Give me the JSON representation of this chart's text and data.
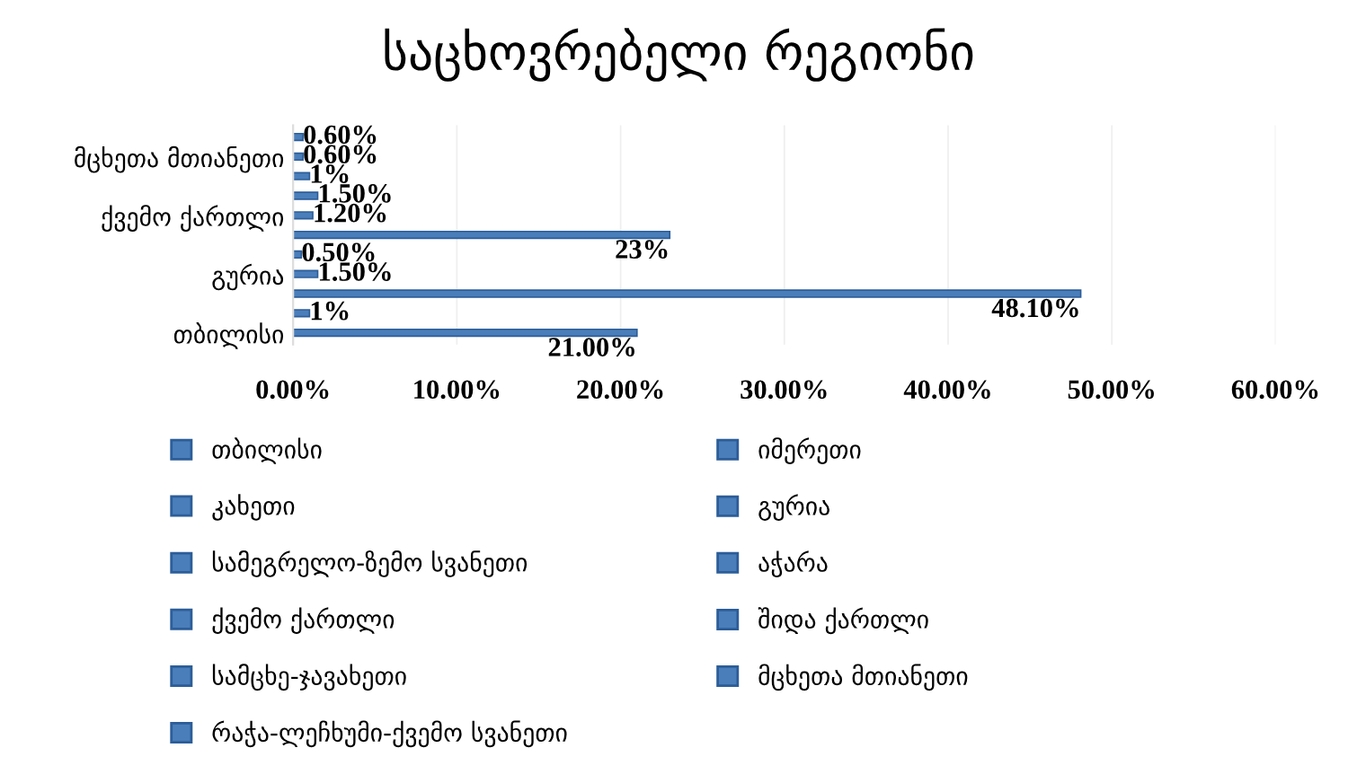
{
  "chart_data": {
    "type": "bar",
    "orientation": "horizontal",
    "title": "საცხოვრებელი რეგიონი",
    "categories": [
      null,
      "მცხეთა მთიანეთი",
      null,
      null,
      "ქვემო ქართლი",
      null,
      null,
      "გურია",
      null,
      null,
      "თბილისი"
    ],
    "series": [
      {
        "name": "თბილისი",
        "color": "#4a7ebb",
        "values": [
          null,
          null,
          null,
          null,
          null,
          null,
          null,
          null,
          null,
          null,
          21
        ],
        "value_labels": [
          null,
          null,
          null,
          null,
          null,
          null,
          null,
          null,
          null,
          null,
          "21.00%"
        ]
      },
      {
        "name": "იმერეთი",
        "color": "#4a7ebb",
        "values": [
          null,
          null,
          null,
          null,
          null,
          null,
          null,
          null,
          null,
          1,
          null
        ],
        "value_labels": [
          null,
          null,
          null,
          null,
          null,
          null,
          null,
          null,
          null,
          "1%",
          null
        ]
      },
      {
        "name": "კახეთი",
        "color": "#4a7ebb",
        "values": [
          null,
          null,
          null,
          null,
          null,
          null,
          null,
          null,
          48.1,
          null,
          null
        ],
        "value_labels": [
          null,
          null,
          null,
          null,
          null,
          null,
          null,
          null,
          "48.10%",
          null,
          null
        ]
      },
      {
        "name": "გურია",
        "color": "#4a7ebb",
        "values": [
          null,
          null,
          null,
          null,
          null,
          null,
          null,
          1.5,
          null,
          null,
          null
        ],
        "value_labels": [
          null,
          null,
          null,
          null,
          null,
          null,
          null,
          "1.50%",
          null,
          null,
          null
        ]
      },
      {
        "name": "სამეგრელო-ზემო სვანეთი",
        "color": "#4a7ebb",
        "values": [
          null,
          null,
          null,
          null,
          null,
          null,
          0.5,
          null,
          null,
          null,
          null
        ],
        "value_labels": [
          null,
          null,
          null,
          null,
          null,
          null,
          "0.50%",
          null,
          null,
          null,
          null
        ]
      },
      {
        "name": "აჭარა",
        "color": "#4a7ebb",
        "values": [
          null,
          null,
          null,
          null,
          null,
          23,
          null,
          null,
          null,
          null,
          null
        ],
        "value_labels": [
          null,
          null,
          null,
          null,
          null,
          "23%",
          null,
          null,
          null,
          null,
          null
        ]
      },
      {
        "name": "ქვემო ქართლი",
        "color": "#4a7ebb",
        "values": [
          null,
          null,
          null,
          null,
          1.2,
          null,
          null,
          null,
          null,
          null,
          null
        ],
        "value_labels": [
          null,
          null,
          null,
          null,
          "1.20%",
          null,
          null,
          null,
          null,
          null,
          null
        ]
      },
      {
        "name": "შიდა ქართლი",
        "color": "#4a7ebb",
        "values": [
          null,
          null,
          null,
          1.5,
          null,
          null,
          null,
          null,
          null,
          null,
          null
        ],
        "value_labels": [
          null,
          null,
          null,
          "1.50%",
          null,
          null,
          null,
          null,
          null,
          null,
          null
        ]
      },
      {
        "name": "სამცხე-ჯავახეთი",
        "color": "#4a7ebb",
        "values": [
          null,
          null,
          1,
          null,
          null,
          null,
          null,
          null,
          null,
          null,
          null
        ],
        "value_labels": [
          null,
          null,
          "1%",
          null,
          null,
          null,
          null,
          null,
          null,
          null,
          null
        ]
      },
      {
        "name": "მცხეთა მთიანეთი",
        "color": "#4a7ebb",
        "values": [
          null,
          0.6,
          null,
          null,
          null,
          null,
          null,
          null,
          null,
          null,
          null
        ],
        "value_labels": [
          null,
          "0.60%",
          null,
          null,
          null,
          null,
          null,
          null,
          null,
          null,
          null
        ]
      },
      {
        "name": "რაჭა-ლეჩხუმი-ქვემო სვანეთი",
        "color": "#4a7ebb",
        "values": [
          0.6,
          null,
          null,
          null,
          null,
          null,
          null,
          null,
          null,
          null,
          null
        ],
        "value_labels": [
          "0.60%",
          null,
          null,
          null,
          null,
          null,
          null,
          null,
          null,
          null,
          null
        ]
      }
    ],
    "xlim": [
      0,
      60
    ],
    "xticks": [
      {
        "value": 0,
        "label": "0.00%"
      },
      {
        "value": 10,
        "label": "10.00%"
      },
      {
        "value": 20,
        "label": "20.00%"
      },
      {
        "value": 30,
        "label": "30.00%"
      },
      {
        "value": 40,
        "label": "40.00%"
      },
      {
        "value": 50,
        "label": "50.00%"
      },
      {
        "value": 60,
        "label": "60.00%"
      }
    ],
    "grid": "x",
    "legend": "bottom"
  }
}
